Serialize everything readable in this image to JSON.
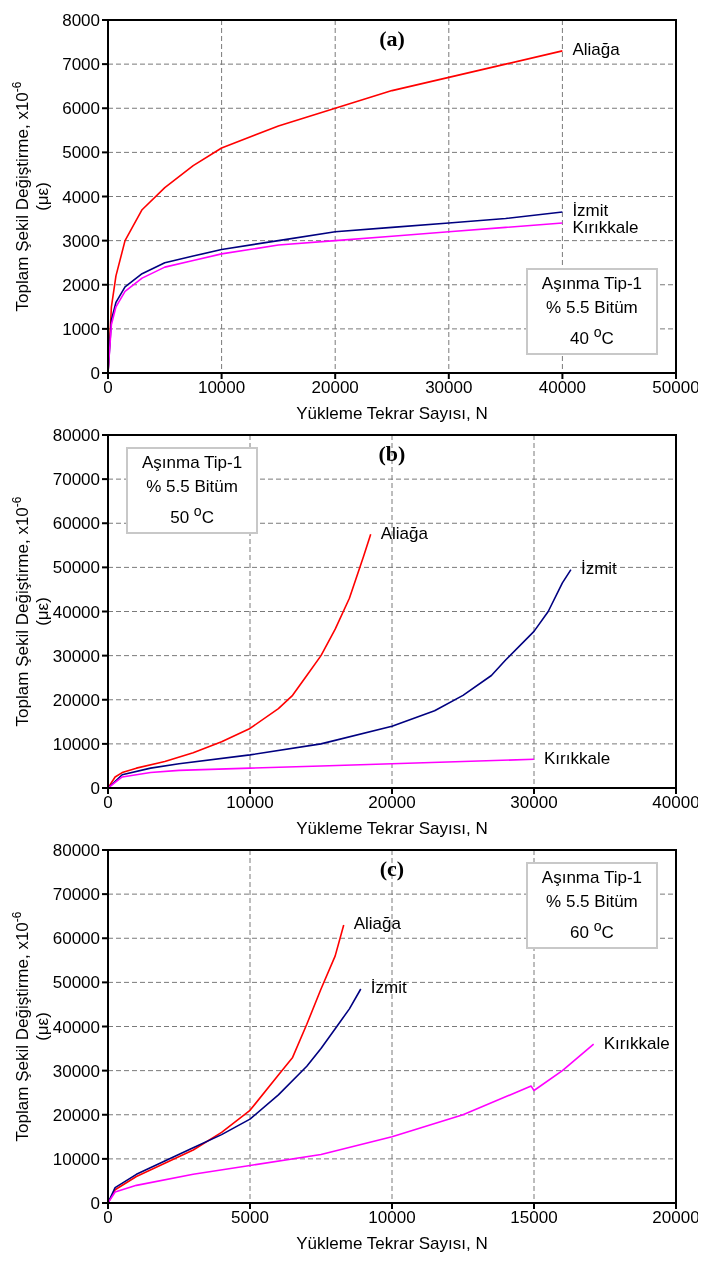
{
  "chart_data": [
    {
      "type": "line",
      "xlabel": "Yükleme Tekrar Sayısı, N",
      "ylabel": "Toplam Şekil Değiştirme, x10$^{-6}$\n(με)",
      "xlim": [
        0,
        50000
      ],
      "xticks": [
        0,
        10000,
        20000,
        30000,
        40000,
        50000
      ],
      "ylim": [
        0,
        8000
      ],
      "yticks": [
        0,
        1000,
        2000,
        3000,
        4000,
        5000,
        6000,
        7000,
        8000
      ],
      "grid": true,
      "marker": "none",
      "line_style": "solid",
      "annotations": [
        "(a)",
        "Aşınma Tip-1",
        "% 5.5 Bitüm",
        "40 $^{o}$C"
      ],
      "series": [
        {
          "name": "Aliağa",
          "color": "#ff0000",
          "x": [
            0,
            300,
            700,
            1500,
            3000,
            5000,
            7500,
            10000,
            15000,
            20000,
            25000,
            30000,
            35000,
            40000
          ],
          "values": [
            0,
            1500,
            2200,
            3000,
            3700,
            4200,
            4700,
            5100,
            5600,
            6000,
            6400,
            6700,
            7000,
            7300
          ]
        },
        {
          "name": "İzmit",
          "color": "#000080",
          "x": [
            0,
            300,
            700,
            1500,
            3000,
            5000,
            7500,
            10000,
            15000,
            20000,
            25000,
            30000,
            35000,
            40000
          ],
          "values": [
            0,
            1200,
            1600,
            1950,
            2250,
            2500,
            2650,
            2800,
            3000,
            3200,
            3300,
            3400,
            3500,
            3650
          ]
        },
        {
          "name": "Kırıkkale",
          "color": "#ff00ff",
          "x": [
            0,
            300,
            700,
            1500,
            3000,
            5000,
            7500,
            10000,
            15000,
            20000,
            25000,
            30000,
            35000,
            40000
          ],
          "values": [
            0,
            1100,
            1500,
            1850,
            2150,
            2400,
            2550,
            2700,
            2900,
            3000,
            3100,
            3200,
            3300,
            3400
          ]
        }
      ]
    },
    {
      "type": "line",
      "xlabel": "Yükleme Tekrar Sayısı, N",
      "ylabel": "Toplam Şekil Değiştirme, x10$^{-6}$\n(με)",
      "xlim": [
        0,
        40000
      ],
      "xticks": [
        0,
        10000,
        20000,
        30000,
        40000
      ],
      "ylim": [
        0,
        80000
      ],
      "yticks": [
        0,
        10000,
        20000,
        30000,
        40000,
        50000,
        60000,
        70000,
        80000
      ],
      "grid": true,
      "marker": "none",
      "line_style": "solid",
      "annotations": [
        "(b)",
        "Aşınma Tip-1",
        "% 5.5 Bitüm",
        "50 $^{o}$C"
      ],
      "series": [
        {
          "name": "Aliağa",
          "color": "#ff0000",
          "x": [
            0,
            500,
            1000,
            2000,
            4000,
            6000,
            8000,
            10000,
            12000,
            13000,
            14000,
            15000,
            16000,
            17000,
            18000,
            18500
          ],
          "values": [
            0,
            2500,
            3500,
            4500,
            6000,
            8000,
            10500,
            13500,
            18000,
            21000,
            25500,
            30000,
            36000,
            43000,
            52500,
            57500
          ]
        },
        {
          "name": "İzmit",
          "color": "#000080",
          "x": [
            0,
            1000,
            3000,
            5000,
            10000,
            15000,
            20000,
            23000,
            25000,
            27000,
            28000,
            30000,
            31000,
            32000,
            32600
          ],
          "values": [
            0,
            3000,
            4500,
            5500,
            7500,
            10000,
            14000,
            17500,
            21000,
            25500,
            29000,
            35500,
            40000,
            46500,
            49500
          ]
        },
        {
          "name": "Kırıkkale",
          "color": "#ff00ff",
          "x": [
            0,
            1000,
            3000,
            5000,
            10000,
            15000,
            20000,
            25000,
            30000
          ],
          "values": [
            0,
            2500,
            3500,
            4000,
            4500,
            5000,
            5500,
            6000,
            6500
          ]
        }
      ]
    },
    {
      "type": "line",
      "xlabel": "Yükleme Tekrar Sayısı, N",
      "ylabel": "Toplam Şekil Değiştirme, x10$^{-6}$\n(με)",
      "xlim": [
        0,
        20000
      ],
      "xticks": [
        0,
        5000,
        10000,
        15000,
        20000
      ],
      "ylim": [
        0,
        80000
      ],
      "yticks": [
        0,
        10000,
        20000,
        30000,
        40000,
        50000,
        60000,
        70000,
        80000
      ],
      "grid": true,
      "marker": "none",
      "line_style": "solid",
      "annotations": [
        "(c)",
        "Aşınma Tip-1",
        "% 5.5 Bitüm",
        "60 $^{o}$C"
      ],
      "series": [
        {
          "name": "Aliağa",
          "color": "#ff0000",
          "x": [
            0,
            250,
            1000,
            2000,
            3000,
            4000,
            5000,
            6000,
            6500,
            7000,
            7500,
            8000,
            8300
          ],
          "values": [
            0,
            3000,
            6000,
            9000,
            12000,
            16000,
            21000,
            29000,
            33000,
            40500,
            48500,
            56000,
            63000
          ]
        },
        {
          "name": "İzmit",
          "color": "#000080",
          "x": [
            0,
            250,
            1000,
            2000,
            3000,
            4000,
            5000,
            6000,
            7000,
            7500,
            8000,
            8500,
            8900
          ],
          "values": [
            0,
            3500,
            6500,
            9500,
            12500,
            15500,
            19000,
            24500,
            31000,
            35000,
            39500,
            44000,
            48500
          ]
        },
        {
          "name": "Kırıkkale",
          "color": "#ff00ff",
          "x": [
            0,
            250,
            1000,
            3000,
            5000,
            7500,
            10000,
            12500,
            14900,
            15000,
            16000,
            17100
          ],
          "values": [
            0,
            2500,
            4000,
            6500,
            8500,
            11000,
            15000,
            20000,
            26500,
            25500,
            30000,
            36000
          ]
        }
      ]
    }
  ]
}
